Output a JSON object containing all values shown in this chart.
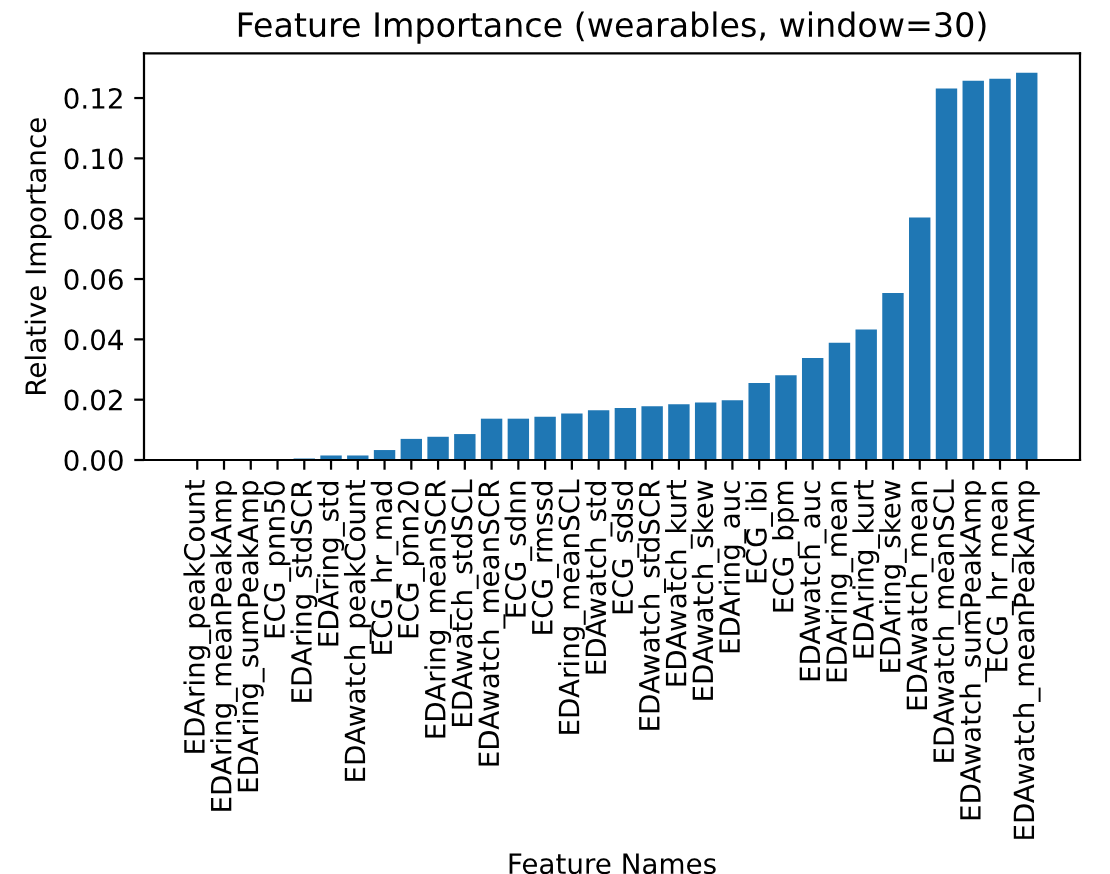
{
  "chart_data": {
    "type": "bar",
    "title": "Feature Importance (wearables, window=30)",
    "xlabel": "Feature Names",
    "ylabel": "Relative Importance",
    "categories": [
      "EDAring_peakCount",
      "EDAring_meanPeakAmp",
      "EDAring_sumPeakAmp",
      "ECG_pnn50",
      "EDAring_stdSCR",
      "EDAring_std",
      "EDAwatch_peakCount",
      "ECG_hr_mad",
      "ECG_pnn20",
      "EDAring_meanSCR",
      "EDAwatch_stdSCL",
      "EDAwatch_meanSCR",
      "ECG_sdnn",
      "ECG_rmssd",
      "EDAring_meanSCL",
      "EDAwatch_std",
      "ECG_sdsd",
      "EDAwatch_stdSCR",
      "EDAwatch_kurt",
      "EDAwatch_skew",
      "EDAring_auc",
      "ECG_ibi",
      "ECG_bpm",
      "EDAwatch_auc",
      "EDAring_mean",
      "EDAring_kurt",
      "EDAring_skew",
      "EDAwatch_mean",
      "EDAwatch_meanSCL",
      "EDAwatch_sumPeakAmp",
      "ECG_hr_mean",
      "EDAwatch_meanPeakAmp"
    ],
    "values": [
      0,
      0,
      0,
      0,
      0.0005,
      0.0015,
      0.0015,
      0.0033,
      0.007,
      0.0077,
      0.0086,
      0.0137,
      0.0137,
      0.0143,
      0.0154,
      0.0165,
      0.0172,
      0.0178,
      0.0185,
      0.0191,
      0.0198,
      0.0255,
      0.0281,
      0.0338,
      0.0389,
      0.0433,
      0.0554,
      0.0804,
      0.1232,
      0.1257,
      0.1264,
      0.1284
    ],
    "color": "#1f77b4",
    "ylim": [
      0,
      0.1348
    ],
    "yticks": [
      {
        "value": 0,
        "label": "0.00"
      },
      {
        "value": 0.02,
        "label": "0.02"
      },
      {
        "value": 0.04,
        "label": "0.04"
      },
      {
        "value": 0.06,
        "label": "0.06"
      },
      {
        "value": 0.08,
        "label": "0.08"
      },
      {
        "value": 0.1,
        "label": "0.10"
      },
      {
        "value": 0.12,
        "label": "0.12"
      }
    ],
    "grid": false
  }
}
